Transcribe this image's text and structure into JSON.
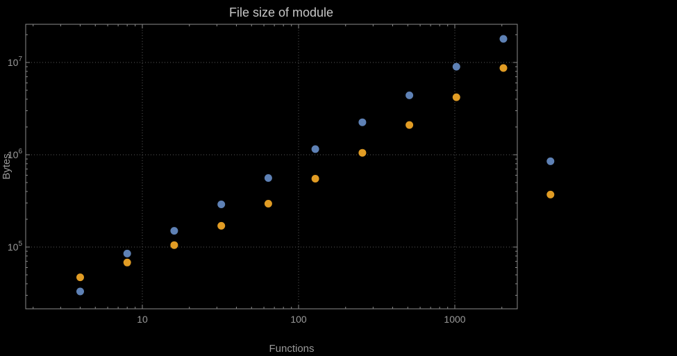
{
  "chart_data": {
    "type": "scatter",
    "title": "File size of module",
    "xlabel": "Functions",
    "ylabel": "Bytes",
    "x_scale": "log",
    "y_scale": "log",
    "x_ticks": [
      10,
      100,
      1000
    ],
    "y_ticks": [
      "10^5",
      "10^6",
      "10^7"
    ],
    "grid": "dotted lines at major (power of ten) ticks only",
    "legend": "none",
    "xlim_frame": [
      1.8,
      2500
    ],
    "ylim_frame": [
      21000,
      26000000
    ],
    "colors": {
      "background": "#000000",
      "frame": "#8c8c8c",
      "grid": "#5a5a5a",
      "text": "#9a9a9a",
      "title_text": "#c6c6c6"
    },
    "series": [
      {
        "name": "blue",
        "color": "#5e81b5",
        "x": [
          4,
          8,
          16,
          32,
          64,
          128,
          256,
          512,
          1024,
          2048,
          4096
        ],
        "y": [
          33000,
          85000,
          150000,
          290000,
          560000,
          1150000,
          2250000,
          4400000,
          9000000,
          18000000,
          850000
        ]
      },
      {
        "name": "orange",
        "color": "#e19c24",
        "x": [
          4,
          8,
          16,
          32,
          64,
          128,
          256,
          512,
          1024,
          2048,
          4096
        ],
        "y": [
          47000,
          68000,
          105000,
          170000,
          295000,
          550000,
          1050000,
          2100000,
          4200000,
          8700000,
          370000
        ]
      }
    ]
  }
}
